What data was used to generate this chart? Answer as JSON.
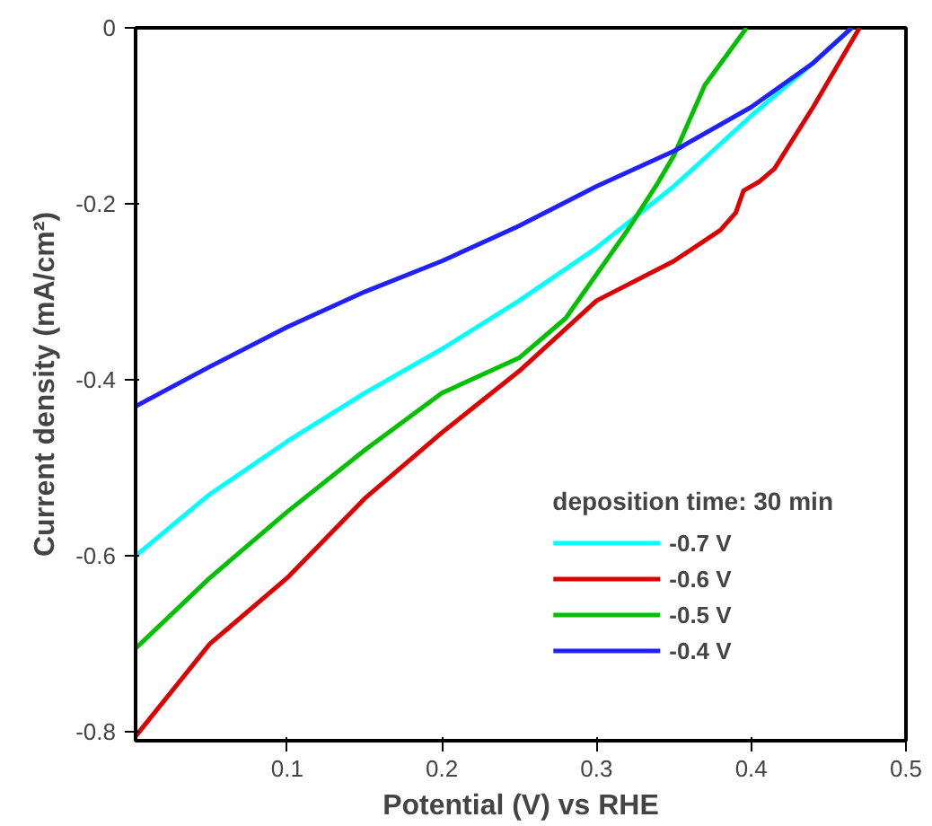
{
  "chart_data": {
    "type": "line",
    "xlabel": "Potential (V) vs RHE",
    "ylabel": "Current density (mA/cm²)",
    "legend_title": "deposition time: 30 min",
    "legend": "bottom right",
    "grid": false,
    "xlim": [
      0.002,
      0.5
    ],
    "xticks": [
      0.1,
      0.2,
      0.3,
      0.4,
      0.5
    ],
    "ylim": [
      -0.81,
      0
    ],
    "yticks": [
      0,
      -0.2,
      -0.4,
      -0.6,
      -0.8
    ],
    "series": [
      {
        "name": "-0.7 V",
        "color": "#00ffff",
        "x": [
          0.002,
          0.05,
          0.1,
          0.15,
          0.2,
          0.25,
          0.3,
          0.35,
          0.4,
          0.44,
          0.465
        ],
        "values": [
          -0.6,
          -0.53,
          -0.47,
          -0.415,
          -0.365,
          -0.31,
          -0.25,
          -0.18,
          -0.1,
          -0.04,
          0
        ]
      },
      {
        "name": "-0.6 V",
        "color": "#dd0000",
        "x": [
          0.002,
          0.05,
          0.1,
          0.15,
          0.2,
          0.25,
          0.3,
          0.35,
          0.38,
          0.39,
          0.395,
          0.405,
          0.415,
          0.44,
          0.47
        ],
        "values": [
          -0.805,
          -0.7,
          -0.625,
          -0.535,
          -0.46,
          -0.39,
          -0.31,
          -0.265,
          -0.23,
          -0.21,
          -0.185,
          -0.175,
          -0.16,
          -0.09,
          0
        ]
      },
      {
        "name": "-0.5 V",
        "color": "#00c000",
        "x": [
          0.002,
          0.05,
          0.1,
          0.15,
          0.2,
          0.25,
          0.28,
          0.3,
          0.32,
          0.34,
          0.35,
          0.37,
          0.397
        ],
        "values": [
          -0.705,
          -0.625,
          -0.55,
          -0.48,
          -0.415,
          -0.375,
          -0.33,
          -0.28,
          -0.23,
          -0.175,
          -0.145,
          -0.065,
          0
        ]
      },
      {
        "name": "-0.4 V",
        "color": "#2020ff",
        "x": [
          0.002,
          0.05,
          0.1,
          0.15,
          0.2,
          0.25,
          0.3,
          0.35,
          0.4,
          0.44,
          0.465
        ],
        "values": [
          -0.43,
          -0.385,
          -0.34,
          -0.3,
          -0.265,
          -0.225,
          -0.18,
          -0.14,
          -0.09,
          -0.04,
          0
        ]
      }
    ]
  }
}
